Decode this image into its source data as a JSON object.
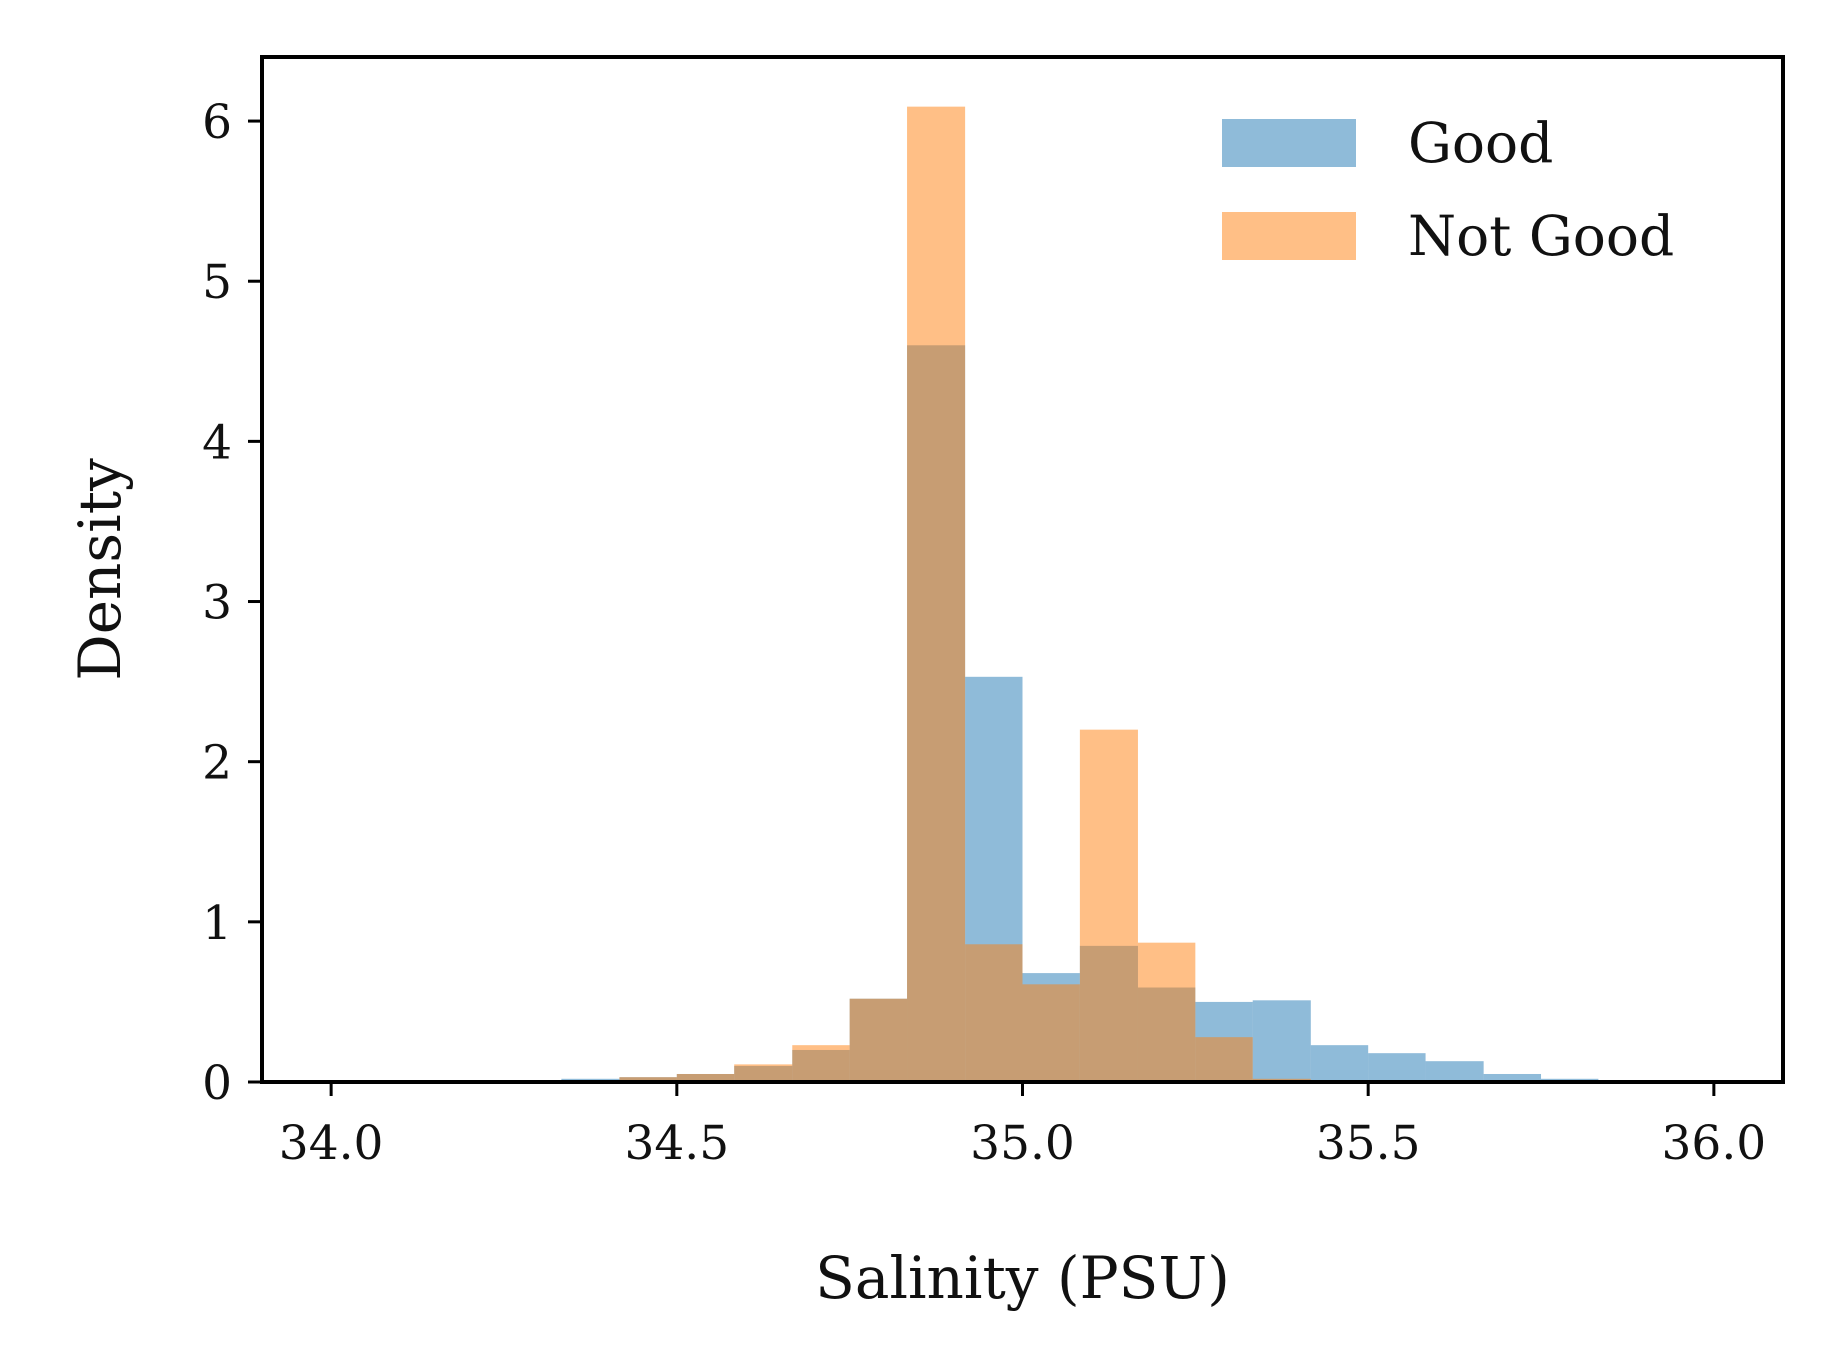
{
  "chart_data": {
    "type": "bar",
    "subtype": "overlaid-histogram",
    "xlabel": "Salinity (PSU)",
    "ylabel": "Density",
    "xlim": [
      33.9,
      36.1
    ],
    "ylim": [
      0,
      6.4
    ],
    "xticks": [
      34.0,
      34.5,
      35.0,
      35.5,
      36.0
    ],
    "xtick_labels": [
      "34.0",
      "34.5",
      "35.0",
      "35.5",
      "36.0"
    ],
    "yticks": [
      0,
      1,
      2,
      3,
      4,
      5,
      6
    ],
    "ytick_labels": [
      "0",
      "1",
      "2",
      "3",
      "4",
      "5",
      "6"
    ],
    "grid": false,
    "legend_position": "top-right",
    "series": [
      {
        "name": "Good",
        "color": "#1f77b4",
        "opacity": 0.5,
        "bins": [
          {
            "x0": 34.25,
            "x1": 34.333,
            "value": 0.01
          },
          {
            "x0": 34.333,
            "x1": 34.417,
            "value": 0.02
          },
          {
            "x0": 34.417,
            "x1": 34.5,
            "value": 0.03
          },
          {
            "x0": 34.5,
            "x1": 34.583,
            "value": 0.05
          },
          {
            "x0": 34.583,
            "x1": 34.667,
            "value": 0.1
          },
          {
            "x0": 34.667,
            "x1": 34.75,
            "value": 0.2
          },
          {
            "x0": 34.75,
            "x1": 34.833,
            "value": 0.52
          },
          {
            "x0": 34.833,
            "x1": 34.917,
            "value": 4.6
          },
          {
            "x0": 34.917,
            "x1": 35.0,
            "value": 2.53
          },
          {
            "x0": 35.0,
            "x1": 35.083,
            "value": 0.68
          },
          {
            "x0": 35.083,
            "x1": 35.167,
            "value": 0.85
          },
          {
            "x0": 35.167,
            "x1": 35.25,
            "value": 0.59
          },
          {
            "x0": 35.25,
            "x1": 35.333,
            "value": 0.5
          },
          {
            "x0": 35.333,
            "x1": 35.417,
            "value": 0.51
          },
          {
            "x0": 35.417,
            "x1": 35.5,
            "value": 0.23
          },
          {
            "x0": 35.5,
            "x1": 35.583,
            "value": 0.18
          },
          {
            "x0": 35.583,
            "x1": 35.667,
            "value": 0.13
          },
          {
            "x0": 35.667,
            "x1": 35.75,
            "value": 0.05
          },
          {
            "x0": 35.75,
            "x1": 35.833,
            "value": 0.02
          }
        ]
      },
      {
        "name": "Not Good",
        "color": "#ff7f0e",
        "opacity": 0.5,
        "bins": [
          {
            "x0": 34.417,
            "x1": 34.5,
            "value": 0.03
          },
          {
            "x0": 34.5,
            "x1": 34.583,
            "value": 0.05
          },
          {
            "x0": 34.583,
            "x1": 34.667,
            "value": 0.11
          },
          {
            "x0": 34.667,
            "x1": 34.75,
            "value": 0.23
          },
          {
            "x0": 34.75,
            "x1": 34.833,
            "value": 0.52
          },
          {
            "x0": 34.833,
            "x1": 34.917,
            "value": 6.09
          },
          {
            "x0": 34.917,
            "x1": 35.0,
            "value": 0.86
          },
          {
            "x0": 35.0,
            "x1": 35.083,
            "value": 0.61
          },
          {
            "x0": 35.083,
            "x1": 35.167,
            "value": 2.2
          },
          {
            "x0": 35.167,
            "x1": 35.25,
            "value": 0.87
          },
          {
            "x0": 35.25,
            "x1": 35.333,
            "value": 0.28
          },
          {
            "x0": 35.333,
            "x1": 35.417,
            "value": 0.02
          }
        ]
      }
    ]
  }
}
